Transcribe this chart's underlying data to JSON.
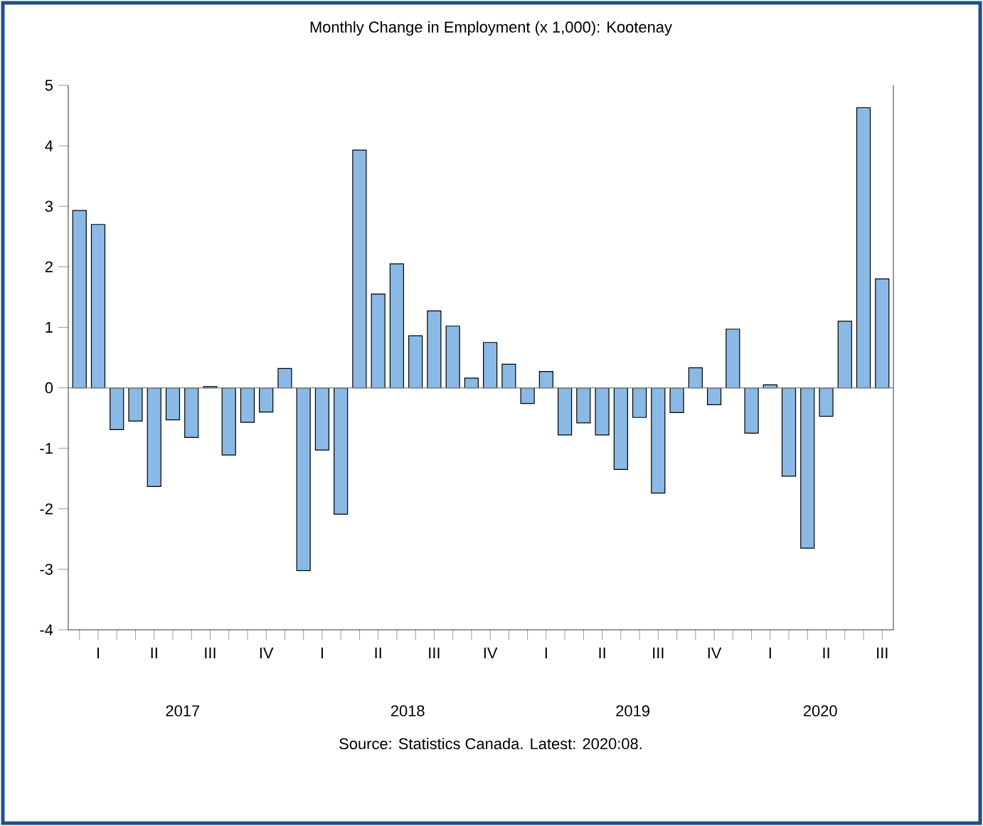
{
  "chart_data": {
    "type": "bar",
    "title": "Monthly Change in Employment (x 1,000): Kootenay",
    "categories": [
      null,
      "I",
      null,
      null,
      "II",
      null,
      null,
      "III",
      null,
      null,
      "IV",
      null,
      null,
      "I",
      null,
      null,
      "II",
      null,
      null,
      "III",
      null,
      null,
      "IV",
      null,
      null,
      "I",
      null,
      null,
      "II",
      null,
      null,
      "III",
      null,
      null,
      "IV",
      null,
      null,
      "I",
      null,
      null,
      "II",
      null,
      null,
      "III"
    ],
    "values": [
      2.93,
      2.7,
      -0.69,
      -0.55,
      -1.63,
      -0.53,
      -0.82,
      0.02,
      -1.11,
      -0.57,
      -0.4,
      0.32,
      -3.02,
      -1.03,
      -2.09,
      3.93,
      1.55,
      2.05,
      0.86,
      1.27,
      1.02,
      0.16,
      0.75,
      0.39,
      -0.26,
      0.27,
      -0.78,
      -0.58,
      -0.78,
      -1.35,
      -0.49,
      -1.74,
      -0.41,
      0.33,
      -0.28,
      0.97,
      -0.75,
      0.05,
      -1.46,
      -2.65,
      -0.47,
      1.1,
      4.63,
      1.8
    ],
    "color": "#8ab9e6",
    "ylim": [
      -4,
      5
    ],
    "yticks": [
      -4,
      -3,
      -2,
      -1,
      0,
      1,
      2,
      3,
      4,
      5
    ],
    "annotations": [
      "2017",
      "2018",
      "2019",
      "2020",
      "Source: Statistics Canada. Latest: 2020:08."
    ]
  }
}
